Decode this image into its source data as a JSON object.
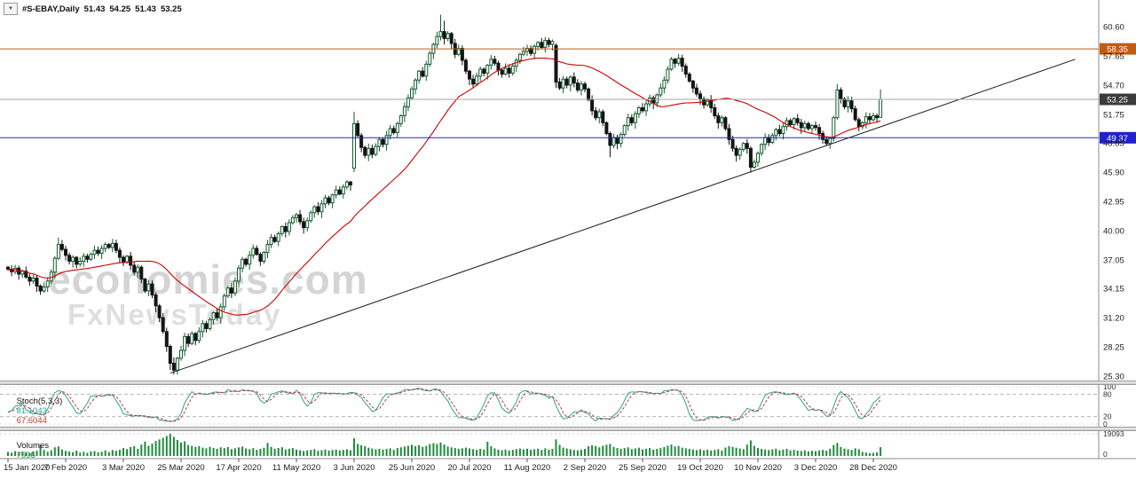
{
  "symbol_bar": {
    "dropdown_icon": "▼",
    "symbol": "#S-EBAY,Daily",
    "open": "51.43",
    "high": "54.25",
    "low": "51.43",
    "close": "53.25"
  },
  "watermark": {
    "line1": "economies.com",
    "line2": "FxNewsToday"
  },
  "indicators": {
    "stoch": {
      "label": "Stoch(5,3,3)",
      "k_value": "81.1043",
      "d_value": "67.6044",
      "k_color": "#2AA198",
      "d_color": "#C23B2B"
    },
    "volumes": {
      "label": "Volumes",
      "value": "7596",
      "bar_color": "#1E8B3C"
    }
  },
  "chart_data": {
    "type": "candlestick",
    "symbol": "#S-EBAY",
    "timeframe": "Daily",
    "title": "#S-EBAY,Daily",
    "last_ohlc": {
      "open": 51.43,
      "high": 54.25,
      "low": 51.43,
      "close": 53.25
    },
    "price_ticks": [
      60.6,
      57.65,
      54.7,
      51.75,
      48.85,
      45.9,
      42.95,
      40.0,
      37.05,
      34.15,
      31.2,
      28.25,
      25.3
    ],
    "x_tick_labels": [
      "15 Jan 2020",
      "7 Feb 2020",
      "3 Mar 2020",
      "25 Mar 2020",
      "17 Apr 2020",
      "11 May 2020",
      "3 Jun 2020",
      "25 Jun 2020",
      "20 Jul 2020",
      "11 Aug 2020",
      "2 Sep 2020",
      "25 Sep 2020",
      "19 Oct 2020",
      "10 Nov 2020",
      "3 Dec 2020",
      "28 Dec 2020"
    ],
    "x_tick_indices": [
      0,
      16,
      32,
      48,
      64,
      80,
      96,
      112,
      128,
      144,
      160,
      176,
      192,
      208,
      224,
      240
    ],
    "candles_close": [
      36.1,
      35.85,
      36.2,
      35.6,
      35.9,
      35.3,
      34.9,
      35.2,
      34.4,
      33.9,
      34.3,
      34.9,
      35.8,
      37.2,
      38.6,
      38.1,
      37.5,
      36.9,
      37.3,
      36.6,
      36.9,
      37.4,
      37.1,
      37.6,
      38.0,
      37.7,
      38.2,
      38.6,
      38.3,
      38.7,
      38.0,
      37.3,
      36.8,
      37.4,
      36.5,
      35.8,
      36.3,
      35.1,
      33.9,
      34.6,
      33.5,
      32.4,
      31.2,
      29.8,
      28.3,
      26.6,
      25.9,
      27.1,
      27.9,
      29.3,
      28.6,
      29.6,
      28.9,
      29.8,
      30.6,
      30.1,
      31.0,
      31.7,
      31.2,
      32.3,
      33.4,
      34.2,
      33.7,
      34.9,
      36.2,
      37.1,
      36.6,
      37.5,
      38.2,
      37.6,
      36.9,
      37.8,
      38.6,
      39.3,
      38.9,
      39.7,
      40.4,
      39.9,
      40.8,
      41.3,
      41.6,
      40.9,
      40.3,
      41.0,
      41.8,
      42.4,
      41.9,
      42.7,
      43.3,
      42.8,
      43.6,
      44.1,
      43.7,
      44.4,
      44.9,
      44.6,
      50.8,
      49.6,
      48.4,
      47.6,
      48.3,
      47.7,
      48.5,
      49.2,
      48.7,
      49.6,
      50.3,
      49.9,
      50.8,
      51.6,
      52.5,
      53.4,
      54.3,
      55.2,
      56.1,
      55.6,
      56.8,
      57.9,
      58.8,
      59.6,
      60.1,
      59.4,
      59.9,
      58.9,
      57.8,
      58.4,
      57.2,
      56.1,
      55.3,
      54.8,
      55.6,
      56.3,
      55.9,
      56.7,
      57.3,
      56.9,
      56.2,
      55.8,
      56.4,
      55.9,
      56.6,
      57.2,
      57.8,
      58.1,
      58.4,
      57.9,
      58.6,
      59.0,
      58.5,
      59.2,
      58.8,
      59.1,
      55.0,
      54.4,
      55.3,
      54.7,
      55.5,
      54.9,
      54.2,
      54.8,
      54.3,
      53.2,
      52.1,
      51.4,
      52.0,
      50.9,
      49.8,
      48.6,
      49.4,
      48.8,
      49.7,
      50.6,
      51.4,
      50.9,
      51.8,
      52.4,
      52.1,
      52.8,
      53.4,
      52.9,
      53.7,
      54.4,
      55.2,
      56.3,
      57.3,
      56.9,
      57.4,
      56.6,
      55.8,
      55.1,
      54.4,
      53.8,
      53.3,
      52.7,
      53.2,
      52.4,
      51.6,
      50.9,
      51.4,
      50.3,
      49.2,
      48.3,
      47.6,
      48.2,
      48.8,
      48.3,
      46.4,
      46.9,
      47.8,
      48.7,
      49.4,
      48.9,
      49.6,
      50.2,
      49.8,
      50.5,
      51.1,
      50.7,
      51.3,
      50.9,
      50.4,
      50.8,
      50.3,
      50.6,
      50.4,
      49.8,
      49.2,
      48.8,
      49.3,
      51.4,
      54.2,
      53.3,
      52.5,
      53.1,
      52.3,
      51.2,
      50.5,
      50.9,
      51.5,
      51.2,
      51.6,
      51.4,
      53.25
    ],
    "special_candles": {
      "14": [
        37.2,
        39.3,
        37.0,
        38.6
      ],
      "45": [
        28.3,
        28.5,
        25.9,
        26.6
      ],
      "46": [
        26.6,
        27.2,
        25.45,
        25.9
      ],
      "96": [
        46.3,
        52.0,
        45.9,
        50.8
      ],
      "120": [
        59.6,
        61.8,
        59.2,
        60.1
      ],
      "121": [
        60.1,
        61.2,
        58.8,
        59.4
      ],
      "152": [
        58.7,
        58.9,
        54.4,
        55.0
      ],
      "167": [
        49.8,
        50.0,
        47.4,
        48.6
      ],
      "206": [
        48.3,
        48.5,
        45.85,
        46.4
      ],
      "229": [
        49.3,
        51.6,
        49.0,
        51.4
      ],
      "230": [
        51.4,
        54.8,
        51.2,
        54.2
      ],
      "242": [
        51.43,
        54.25,
        51.43,
        53.25
      ]
    },
    "hlines": [
      {
        "name": "resistance-line",
        "price": 58.35,
        "label": "58.35",
        "line_color": "#C55A11",
        "badge_color": "#C55A11"
      },
      {
        "name": "last-price-line",
        "price": 53.25,
        "label": "53.25",
        "line_color": "#A6A6A6",
        "badge_color": "#3B3B3B"
      },
      {
        "name": "support-line",
        "price": 49.37,
        "label": "49.37",
        "line_color": "#2222CC",
        "badge_color": "#2222CC"
      }
    ],
    "trendline": {
      "i1": 45,
      "p1": 25.6,
      "i2": 296,
      "p2": 57.3
    },
    "ma": {
      "period": 30,
      "color": "#CC0000"
    },
    "stoch": {
      "k_period": 5,
      "slowing": 3,
      "d_period": 3,
      "current_k": 81.1043,
      "current_d": 67.6044,
      "level_lines": [
        80,
        20
      ],
      "axis_values": [
        100,
        80,
        20,
        0
      ]
    },
    "volumes": [
      3400,
      2800,
      4100,
      2600,
      3700,
      3100,
      2500,
      3900,
      4400,
      9500,
      5200,
      3600,
      4800,
      7400,
      8200,
      5600,
      4300,
      3800,
      3200,
      4600,
      2900,
      3500,
      2700,
      3800,
      4200,
      3100,
      3600,
      4700,
      3300,
      5100,
      4400,
      5300,
      6800,
      5900,
      7600,
      8400,
      6200,
      9800,
      12400,
      8800,
      10600,
      12800,
      14200,
      15600,
      17200,
      19093,
      16400,
      13800,
      11600,
      12600,
      9400,
      8700,
      7900,
      8500,
      7200,
      6600,
      7800,
      6900,
      6100,
      7400,
      6800,
      7700,
      5900,
      6600,
      7300,
      8100,
      6400,
      5800,
      6700,
      5300,
      6100,
      7000,
      11200,
      7800,
      6300,
      6900,
      7500,
      5600,
      6200,
      6800,
      5400,
      4900,
      4300,
      4700,
      5200,
      5800,
      4400,
      5000,
      5600,
      4600,
      5100,
      5500,
      4800,
      5300,
      5700,
      4900,
      15200,
      10400,
      9200,
      8300,
      7100,
      6400,
      5700,
      6200,
      5500,
      6000,
      6600,
      5200,
      6800,
      7400,
      8200,
      8800,
      9600,
      8400,
      9200,
      7800,
      8600,
      10200,
      11000,
      10400,
      11600,
      9800,
      8200,
      7400,
      6800,
      6100,
      6600,
      7200,
      6400,
      5800,
      5300,
      6100,
      5600,
      12200,
      8400,
      6600,
      5400,
      4900,
      5500,
      4700,
      5200,
      5900,
      6400,
      5700,
      6200,
      5300,
      5800,
      6300,
      5100,
      6600,
      5400,
      6100,
      14300,
      9600,
      7200,
      6400,
      5800,
      5200,
      4800,
      5400,
      6100,
      8300,
      9200,
      8600,
      7400,
      8800,
      9600,
      10400,
      7800,
      6900,
      6200,
      6800,
      7400,
      5900,
      6500,
      7100,
      5600,
      6200,
      6800,
      5400,
      6100,
      6700,
      7600,
      8800,
      9800,
      8200,
      8600,
      7200,
      6600,
      6100,
      5600,
      5100,
      5700,
      4900,
      5400,
      4700,
      5200,
      5800,
      4600,
      7200,
      8400,
      7800,
      7100,
      6400,
      5900,
      9800,
      13400,
      8600,
      6800,
      6100,
      5600,
      5100,
      5700,
      6300,
      4900,
      5500,
      6100,
      4700,
      5300,
      4600,
      4200,
      4800,
      3900,
      4400,
      4100,
      4700,
      5300,
      4500,
      6200,
      9400,
      11200,
      7600,
      6400,
      5800,
      5200,
      6600,
      5700,
      3400,
      2800,
      2400,
      2600,
      3100,
      7596
    ],
    "volumes_max": 19093,
    "volumes_min": 0,
    "volumes_current": 7596
  }
}
